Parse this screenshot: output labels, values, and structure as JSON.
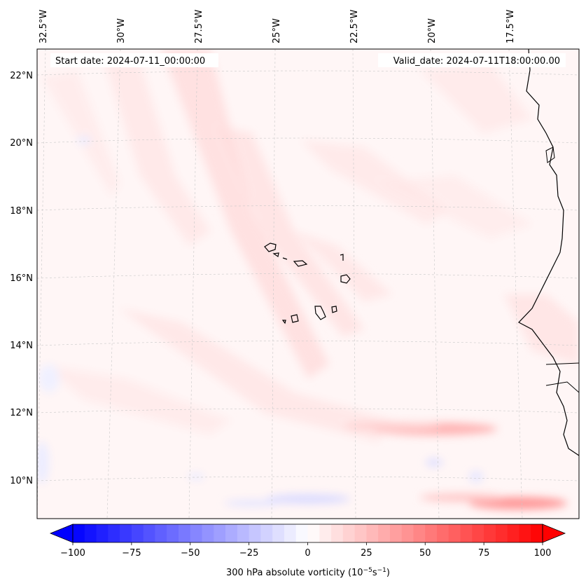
{
  "header": {
    "start_date": "Start date: 2024-07-11_00:00:00",
    "valid_date": "Valid_date: 2024-07-11T18:00:00.00"
  },
  "longitude_labels": [
    "32.5°W",
    "30°W",
    "27.5°W",
    "25°W",
    "22.5°W",
    "20°W",
    "17.5°W"
  ],
  "latitude_labels": [
    "22°N",
    "20°N",
    "18°N",
    "16°N",
    "14°N",
    "12°N",
    "10°N"
  ],
  "colorbar": {
    "label": "300 hPa absolute vorticity (10",
    "label_exp1": "−5",
    "label_mid": "s",
    "label_exp2": "−1",
    "label_end": ")",
    "ticks": [
      "−100",
      "−75",
      "−50",
      "−25",
      "0",
      "25",
      "50",
      "75",
      "100"
    ],
    "min": -100,
    "max": 100,
    "step": 5,
    "cmap": "bwr",
    "extend": "both"
  },
  "colors": {
    "negative_max": "#0000ff",
    "positive_max": "#ff0000",
    "zero": "#ffffff",
    "coastline": "#000000",
    "gridline": "#c8c8c8"
  }
}
